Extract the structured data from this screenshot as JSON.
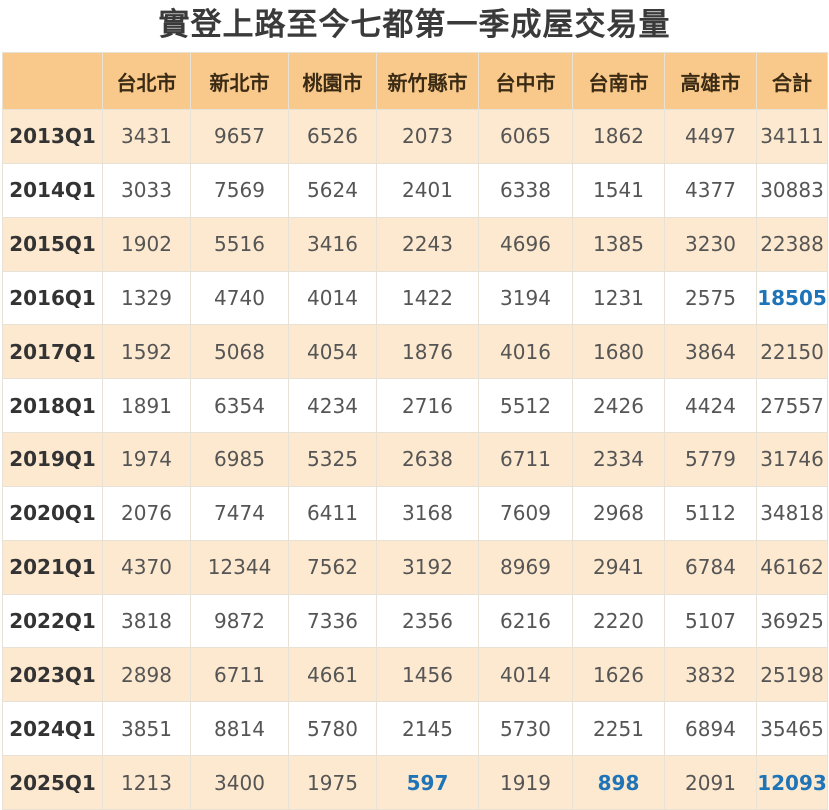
{
  "title": "實登上路至今七都第一季成屋交易量",
  "chart_data": {
    "type": "table",
    "title": "實登上路至今七都第一季成屋交易量",
    "columns": [
      "台北市",
      "新北市",
      "桃園市",
      "新竹縣市",
      "台中市",
      "台南市",
      "高雄市",
      "合計"
    ],
    "rows": [
      {
        "label": "2013Q1",
        "values": [
          "3431",
          "9657",
          "6526",
          "2073",
          "6065",
          "1862",
          "4497",
          "34111"
        ]
      },
      {
        "label": "2014Q1",
        "values": [
          "3033",
          "7569",
          "5624",
          "2401",
          "6338",
          "1541",
          "4377",
          "30883"
        ]
      },
      {
        "label": "2015Q1",
        "values": [
          "1902",
          "5516",
          "3416",
          "2243",
          "4696",
          "1385",
          "3230",
          "22388"
        ]
      },
      {
        "label": "2016Q1",
        "values": [
          "1329",
          "4740",
          "4014",
          "1422",
          "3194",
          "1231",
          "2575",
          "18505"
        ]
      },
      {
        "label": "2017Q1",
        "values": [
          "1592",
          "5068",
          "4054",
          "1876",
          "4016",
          "1680",
          "3864",
          "22150"
        ]
      },
      {
        "label": "2018Q1",
        "values": [
          "1891",
          "6354",
          "4234",
          "2716",
          "5512",
          "2426",
          "4424",
          "27557"
        ]
      },
      {
        "label": "2019Q1",
        "values": [
          "1974",
          "6985",
          "5325",
          "2638",
          "6711",
          "2334",
          "5779",
          "31746"
        ]
      },
      {
        "label": "2020Q1",
        "values": [
          "2076",
          "7474",
          "6411",
          "3168",
          "7609",
          "2968",
          "5112",
          "34818"
        ]
      },
      {
        "label": "2021Q1",
        "values": [
          "4370",
          "12344",
          "7562",
          "3192",
          "8969",
          "2941",
          "6784",
          "46162"
        ]
      },
      {
        "label": "2022Q1",
        "values": [
          "3818",
          "9872",
          "7336",
          "2356",
          "6216",
          "2220",
          "5107",
          "36925"
        ]
      },
      {
        "label": "2023Q1",
        "values": [
          "2898",
          "6711",
          "4661",
          "1456",
          "4014",
          "1626",
          "3832",
          "25198"
        ]
      },
      {
        "label": "2024Q1",
        "values": [
          "3851",
          "8814",
          "5780",
          "2145",
          "5730",
          "2251",
          "6894",
          "35465"
        ]
      },
      {
        "label": "2025Q1",
        "values": [
          "1213",
          "3400",
          "1975",
          "597",
          "1919",
          "898",
          "2091",
          "12093"
        ]
      }
    ],
    "highlights": [
      {
        "row": 3,
        "col": 7
      },
      {
        "row": 12,
        "col": 3
      },
      {
        "row": 12,
        "col": 5
      },
      {
        "row": 12,
        "col": 7
      }
    ],
    "colors": {
      "header_bg": "#f8c98a",
      "stripe_bg": "#fde9cf",
      "highlight_text": "#1f74b8"
    }
  }
}
